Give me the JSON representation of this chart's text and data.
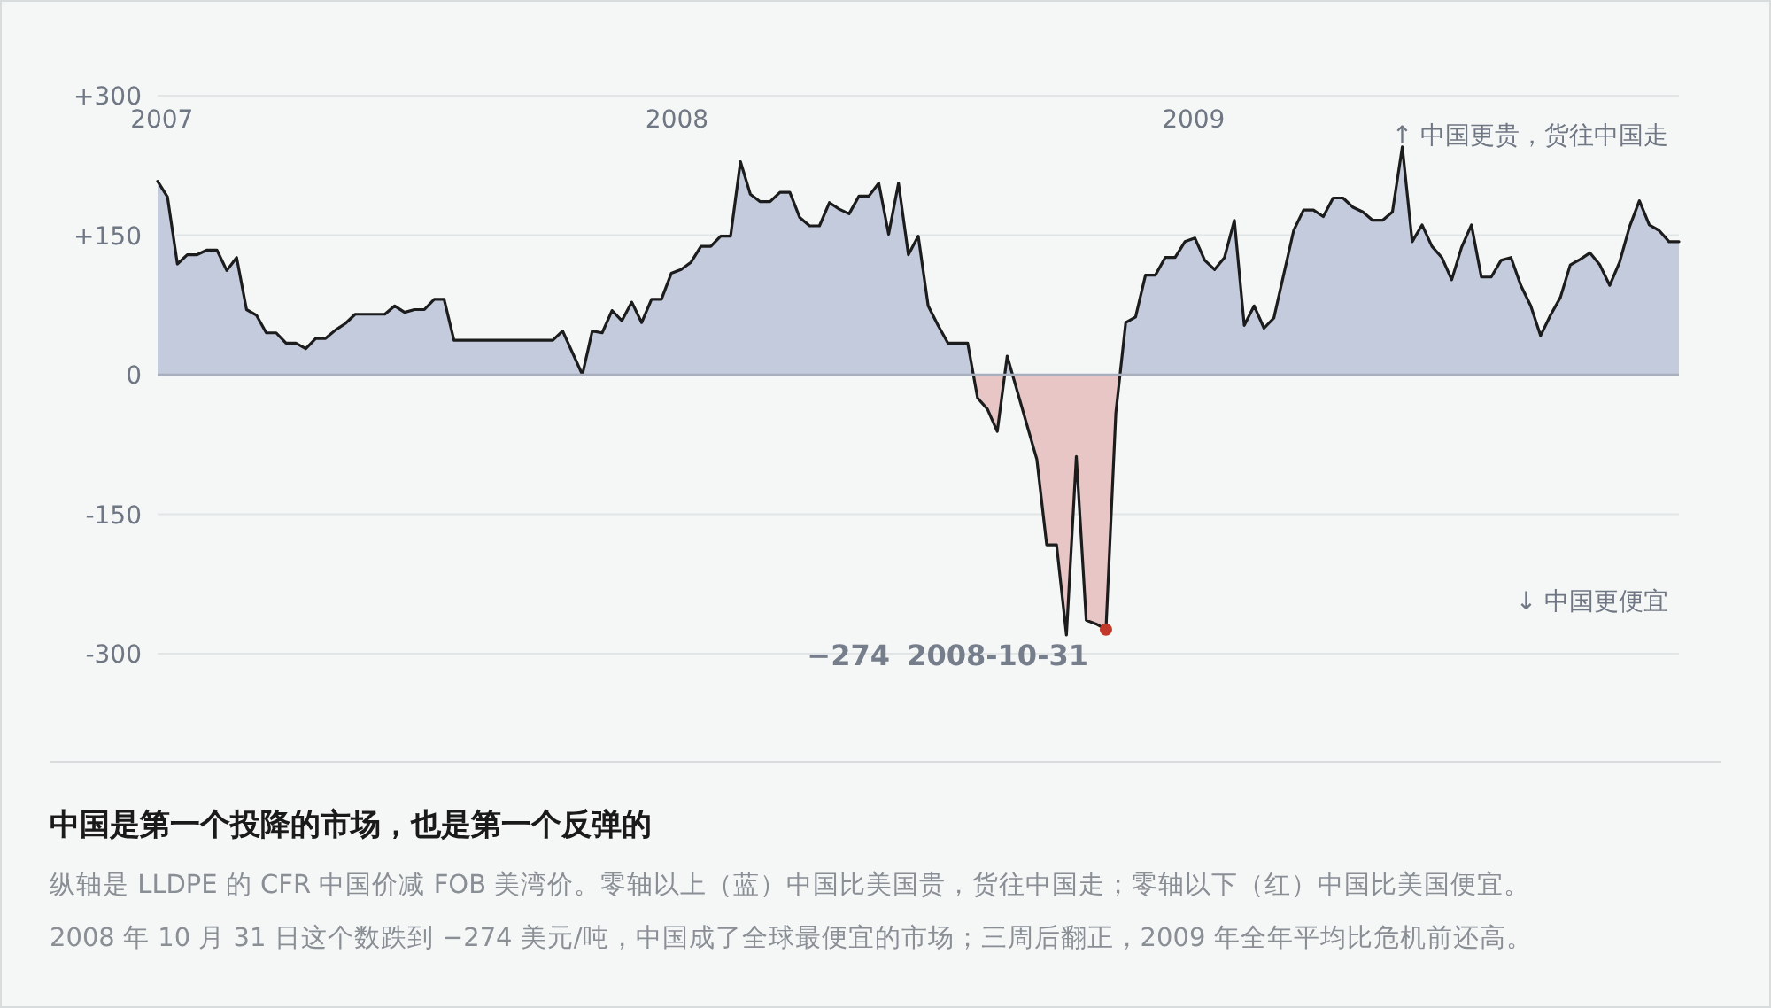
{
  "chart_data": {
    "type": "area",
    "title": "中国是第一个投降的市场，也是第一个反弹的",
    "x": [
      "2006-12-29",
      "2007-01-05",
      "2007-01-12",
      "2007-01-19",
      "2007-01-26",
      "2007-02-02",
      "2007-02-09",
      "2007-02-16",
      "2007-02-23",
      "2007-03-02",
      "2007-03-09",
      "2007-03-16",
      "2007-03-23",
      "2007-03-30",
      "2007-04-06",
      "2007-04-13",
      "2007-04-20",
      "2007-04-27",
      "2007-05-04",
      "2007-05-11",
      "2007-05-18",
      "2007-06-08",
      "2007-06-15",
      "2007-06-22",
      "2007-06-29",
      "2007-07-06",
      "2007-07-13",
      "2007-07-20",
      "2007-07-27",
      "2007-10-05",
      "2007-10-12",
      "2007-10-26",
      "2007-11-02",
      "2007-11-09",
      "2007-11-16",
      "2007-11-23",
      "2007-11-30",
      "2007-12-07",
      "2007-12-14",
      "2007-12-21",
      "2007-12-28",
      "2008-01-04",
      "2008-01-11",
      "2008-01-18",
      "2008-01-25",
      "2008-02-01",
      "2008-02-08",
      "2008-02-15",
      "2008-02-22",
      "2008-02-29",
      "2008-03-07",
      "2008-03-14",
      "2008-03-21",
      "2008-03-28",
      "2008-04-04",
      "2008-04-11",
      "2008-04-18",
      "2008-04-25",
      "2008-05-02",
      "2008-05-09",
      "2008-05-16",
      "2008-05-23",
      "2008-05-30",
      "2008-06-06",
      "2008-06-13",
      "2008-06-20",
      "2008-06-27",
      "2008-07-04",
      "2008-07-11",
      "2008-07-25",
      "2008-08-01",
      "2008-08-08",
      "2008-08-15",
      "2008-08-22",
      "2008-09-12",
      "2008-09-19",
      "2008-09-26",
      "2008-10-03",
      "2008-10-10",
      "2008-10-17",
      "2008-10-24",
      "2008-10-31",
      "2008-11-07",
      "2008-11-14",
      "2008-11-21",
      "2008-11-28",
      "2008-12-05",
      "2008-12-12",
      "2008-12-19",
      "2008-12-26",
      "2009-01-02",
      "2009-01-09",
      "2009-01-16",
      "2009-01-23",
      "2009-01-30",
      "2009-02-06",
      "2009-02-13",
      "2009-02-20",
      "2009-02-27",
      "2009-03-13",
      "2009-03-20",
      "2009-03-27",
      "2009-04-03",
      "2009-04-10",
      "2009-04-17",
      "2009-04-24",
      "2009-05-01",
      "2009-05-08",
      "2009-05-15",
      "2009-05-22",
      "2009-05-29",
      "2009-06-05",
      "2009-06-12",
      "2009-06-19",
      "2009-06-26",
      "2009-07-03",
      "2009-07-10",
      "2009-07-17",
      "2009-07-24",
      "2009-07-31",
      "2009-08-07",
      "2009-08-14",
      "2009-08-21",
      "2009-08-28",
      "2009-09-04",
      "2009-09-11",
      "2009-09-18",
      "2009-09-25",
      "2009-10-02",
      "2009-10-09",
      "2009-10-16",
      "2009-10-23",
      "2009-10-30",
      "2009-11-06",
      "2009-11-13",
      "2009-11-20",
      "2009-11-27",
      "2009-12-04",
      "2009-12-11"
    ],
    "series": [
      {
        "type": "scatter",
        "x": [
          "2008-10-31"
        ],
        "color": "#c0392b",
        "marker": "circle",
        "values": [
          -274
        ]
      },
      {
        "color": "#c3cbdd",
        "values": [
          208,
          191,
          119,
          129,
          129,
          134,
          134,
          112,
          126,
          70,
          64,
          45,
          45,
          34,
          34,
          28,
          39,
          39,
          48,
          55,
          65,
          65,
          74,
          67,
          70,
          70,
          81,
          81,
          37,
          37,
          47,
          0,
          47,
          45,
          69,
          58,
          78,
          56,
          81,
          81,
          109,
          113,
          121,
          138,
          138,
          149,
          149,
          229,
          194,
          186,
          186,
          196,
          196,
          169,
          160,
          160,
          185,
          178,
          173,
          192,
          192,
          206,
          151,
          206,
          129,
          149,
          74,
          53,
          34,
          34,
          -25,
          -37,
          -61,
          20,
          -91,
          -183,
          -183,
          -280,
          -88,
          -264,
          -268,
          -274,
          -41,
          56,
          62,
          107,
          107,
          126,
          126,
          143,
          147,
          123,
          113,
          126,
          166,
          53,
          74,
          50,
          61,
          155,
          177,
          177,
          170,
          190,
          190,
          180,
          175,
          166,
          166,
          175,
          245,
          143,
          161,
          138,
          126,
          102,
          137,
          161,
          105,
          105,
          123,
          126,
          96,
          74,
          42,
          64,
          83,
          118,
          124,
          131,
          118,
          96,
          121,
          159,
          187,
          161,
          155,
          143,
          143
        ]
      }
    ],
    "xlim": [
      "2006-12-29",
      "2009-12-11"
    ],
    "xticks": [
      "2007",
      "2008",
      "2009"
    ],
    "ylim": [
      -300,
      300
    ],
    "yticks": [
      {
        "value": 300,
        "label": "+300"
      },
      {
        "value": 150,
        "label": "+150"
      },
      0,
      -150,
      -300
    ],
    "grid": "y",
    "ref_lines": [
      {
        "axis": "y",
        "value": 0,
        "color": "#a9afbd"
      }
    ],
    "annotations": [
      "−274",
      "2008-10-31",
      "↑ 中国更贵，货往中国走",
      "↓ 中国更便宜",
      "纵轴是 LLDPE 的 CFR 中国价减 FOB 美湾价。零轴以上（蓝）中国比美国贵，货往中国走；零轴以下（红）中国比美国便宜。",
      "2008 年 10 月 31 日这个数跌到 −274 美元/吨，中国成了全球最便宜的市场；三周后翻正，2009 年全年平均比危机前还高。"
    ]
  }
}
